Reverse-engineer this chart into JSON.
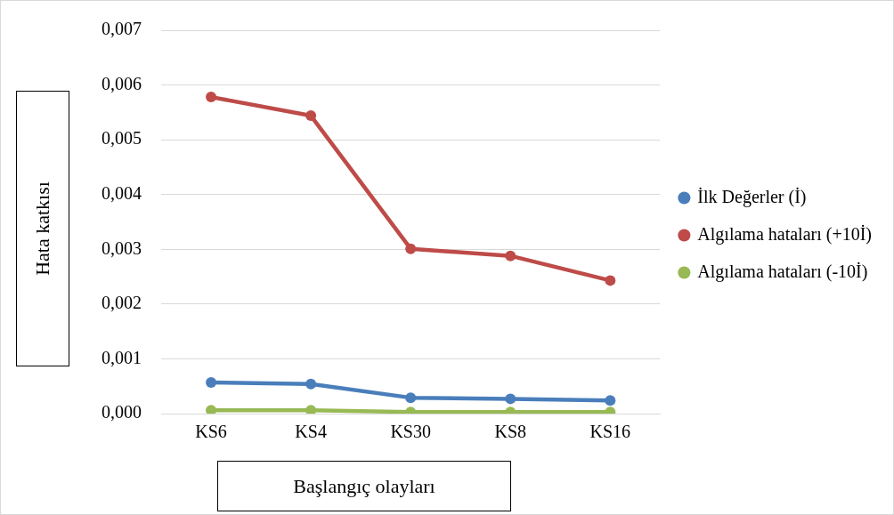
{
  "chart_data": {
    "type": "line",
    "xlabel": "Başlangıç olayları",
    "ylabel": "Hata katkısı",
    "categories": [
      "KS6",
      "KS4",
      "KS30",
      "KS8",
      "KS16"
    ],
    "series": [
      {
        "name": "İlk Değerler (İ)",
        "color": "#4a7ebb",
        "values": [
          0.00057,
          0.00054,
          0.00029,
          0.00027,
          0.00024
        ]
      },
      {
        "name": "Algılama hataları (+10İ)",
        "color": "#be4b48",
        "values": [
          0.00578,
          0.00544,
          0.00301,
          0.00288,
          0.00243
        ]
      },
      {
        "name": "Algılama hataları (-10İ)",
        "color": "#98b954",
        "values": [
          6e-05,
          6e-05,
          3e-05,
          3e-05,
          3e-05
        ]
      }
    ],
    "ylim": [
      0,
      0.007
    ],
    "yticks": [
      {
        "value": 0,
        "label": "0,000"
      },
      {
        "value": 0.001,
        "label": "0,001"
      },
      {
        "value": 0.002,
        "label": "0,002"
      },
      {
        "value": 0.003,
        "label": "0,003"
      },
      {
        "value": 0.004,
        "label": "0,004"
      },
      {
        "value": 0.005,
        "label": "0,005"
      },
      {
        "value": 0.006,
        "label": "0,006"
      },
      {
        "value": 0.007,
        "label": "0,007"
      }
    ],
    "grid": "y",
    "legend": "right",
    "marker": "circle",
    "line_style": "solid"
  }
}
